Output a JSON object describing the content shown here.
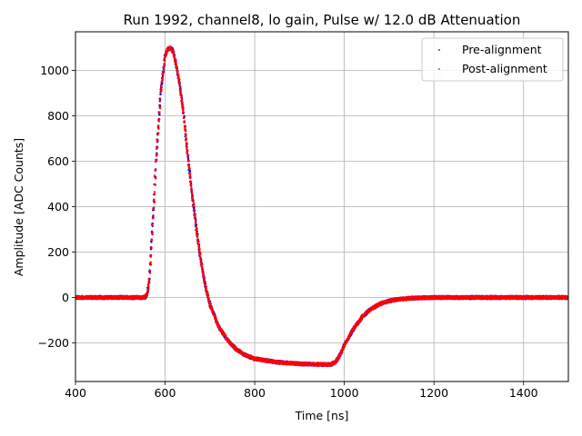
{
  "chart_data": {
    "type": "scatter",
    "title": "Run 1992, channel8, lo gain, Pulse w/ 12.0 dB Attenuation",
    "xlabel": "Time [ns]",
    "ylabel": "Amplitude [ADC Counts]",
    "xlim": [
      400,
      1500
    ],
    "ylim": [
      -370,
      1170
    ],
    "xticks": [
      400,
      600,
      800,
      1000,
      1200,
      1400
    ],
    "yticks": [
      -200,
      0,
      200,
      400,
      600,
      800,
      1000
    ],
    "ytick_labels": [
      "−200",
      "0",
      "200",
      "400",
      "600",
      "800",
      "1000"
    ],
    "grid": true,
    "legend_position": "top-right",
    "series": [
      {
        "name": "Pre-alignment",
        "color": "#0000ff",
        "x": [
          400,
          500,
          555,
          560,
          565,
          570,
          580,
          590,
          600,
          605,
          610,
          615,
          620,
          630,
          640,
          650,
          660,
          670,
          680,
          690,
          700,
          720,
          740,
          760,
          780,
          800,
          850,
          900,
          950,
          970,
          980,
          990,
          1000,
          1020,
          1040,
          1060,
          1080,
          1100,
          1120,
          1150,
          1200,
          1300,
          1400,
          1500
        ],
        "y": [
          0,
          0,
          0,
          15,
          80,
          250,
          600,
          900,
          1060,
          1090,
          1100,
          1095,
          1070,
          970,
          830,
          640,
          460,
          300,
          160,
          50,
          -30,
          -130,
          -190,
          -230,
          -255,
          -270,
          -285,
          -292,
          -295,
          -295,
          -285,
          -255,
          -210,
          -140,
          -85,
          -50,
          -28,
          -15,
          -8,
          -3,
          0,
          0,
          0,
          0
        ]
      },
      {
        "name": "Post-alignment",
        "color": "#ff0000",
        "x": [
          400,
          500,
          555,
          560,
          565,
          570,
          580,
          590,
          600,
          605,
          610,
          615,
          620,
          630,
          640,
          650,
          660,
          670,
          680,
          690,
          700,
          720,
          740,
          760,
          780,
          800,
          850,
          900,
          950,
          970,
          980,
          990,
          1000,
          1020,
          1040,
          1060,
          1080,
          1100,
          1120,
          1150,
          1200,
          1300,
          1400,
          1500
        ],
        "y": [
          0,
          0,
          0,
          15,
          80,
          250,
          600,
          900,
          1060,
          1090,
          1100,
          1095,
          1070,
          970,
          830,
          640,
          460,
          300,
          160,
          50,
          -30,
          -130,
          -190,
          -230,
          -255,
          -270,
          -285,
          -292,
          -295,
          -295,
          -285,
          -255,
          -210,
          -140,
          -85,
          -50,
          -28,
          -15,
          -8,
          -3,
          0,
          0,
          0,
          0
        ]
      }
    ]
  }
}
